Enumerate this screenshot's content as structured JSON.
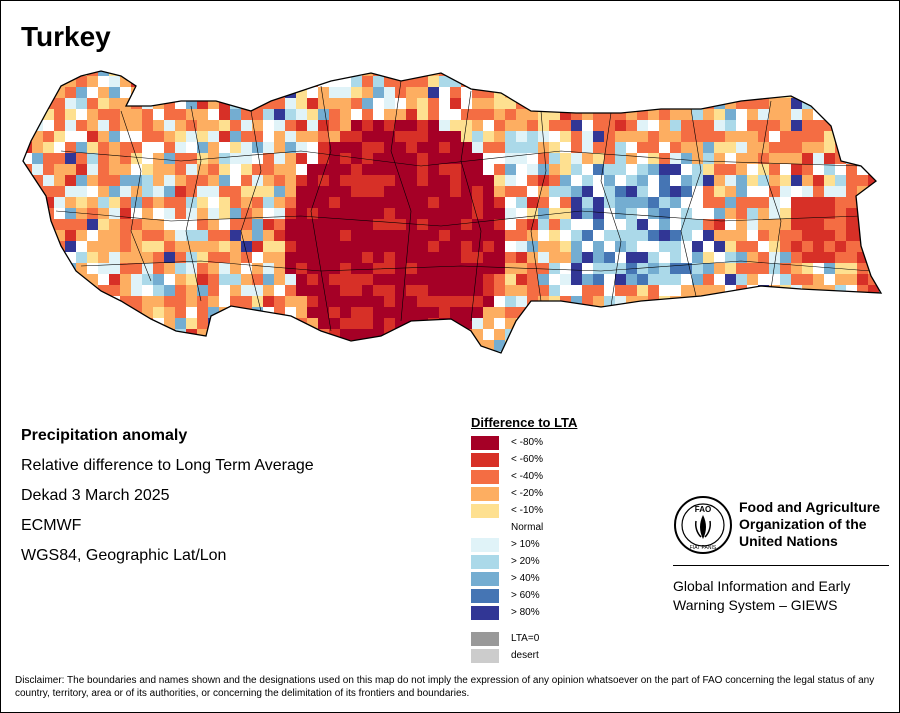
{
  "map": {
    "title": "Turkey",
    "info": {
      "heading": "Precipitation anomaly",
      "subtitle": "Relative difference to Long Term Average",
      "period": "Dekad 3 March 2025",
      "source": "ECMWF",
      "projection": "WGS84, Geographic Lat/Lon"
    },
    "legend": {
      "title": "Difference to LTA",
      "classes": [
        {
          "label": "< -80%",
          "color": "#a50026"
        },
        {
          "label": "< -60%",
          "color": "#d73027"
        },
        {
          "label": "< -40%",
          "color": "#f46d43"
        },
        {
          "label": "< -20%",
          "color": "#fdae61"
        },
        {
          "label": "< -10%",
          "color": "#fee090"
        },
        {
          "label": "Normal",
          "color": "#ffffff"
        },
        {
          "label": "> 10%",
          "color": "#e0f3f8"
        },
        {
          "label": "> 20%",
          "color": "#abd9e9"
        },
        {
          "label": "> 40%",
          "color": "#74add1"
        },
        {
          "label": "> 60%",
          "color": "#4575b4"
        },
        {
          "label": "> 80%",
          "color": "#313695"
        }
      ],
      "special": [
        {
          "label": "LTA=0",
          "color": "#999999"
        },
        {
          "label": "desert",
          "color": "#cccccc"
        }
      ]
    },
    "organization": {
      "name_line1": "Food and Agriculture",
      "name_line2": "Organization of the",
      "name_line3": "United Nations",
      "system_line1": "Global Information and Early",
      "system_line2": "Warning System – GIEWS",
      "logo_text": "FAO",
      "logo_motto": "FIAT PANIS"
    },
    "disclaimer": "Disclaimer: The boundaries and names shown and the designations used on this map do not imply the expression of any opinion whatsoever on the part of FAO concerning the legal status of any country, territory, area or of its authorities, or concerning the delimitation of its frontiers and boundaries."
  }
}
